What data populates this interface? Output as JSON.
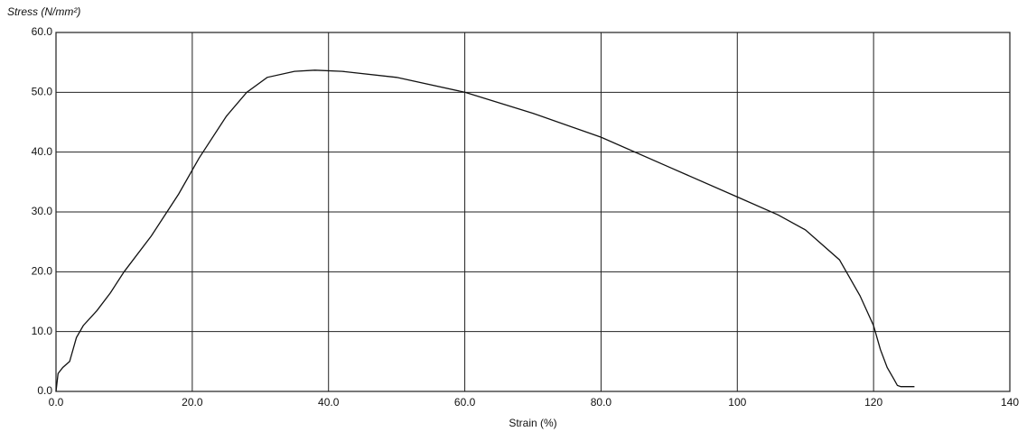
{
  "chart_data": {
    "type": "line",
    "y_label": "Stress (N/mm²)",
    "x_label": "Strain (%)",
    "x": [
      0,
      0.3,
      1,
      2,
      3,
      4,
      6,
      8,
      10,
      14,
      18,
      21,
      25,
      28,
      31,
      35,
      38,
      42,
      50,
      60,
      70,
      80,
      90,
      100,
      106,
      110,
      115,
      118,
      120,
      121,
      122,
      123,
      123.5,
      124,
      126
    ],
    "values": [
      0,
      3,
      4,
      5,
      9,
      11,
      13.5,
      16.5,
      20,
      26,
      33,
      39,
      46,
      50,
      52.5,
      53.5,
      53.7,
      53.5,
      52.5,
      50,
      46.5,
      42.5,
      37.5,
      32.5,
      29.5,
      27,
      22,
      16,
      11,
      7,
      4,
      2,
      1,
      0.8,
      0.8
    ],
    "color": "#111111",
    "xlim": [
      0,
      140
    ],
    "xticks": [
      {
        "value": 0,
        "label": "0.0"
      },
      {
        "value": 20,
        "label": "20.0"
      },
      {
        "value": 40,
        "label": "40.0"
      },
      {
        "value": 60,
        "label": "60.0"
      },
      {
        "value": 80,
        "label": "80.0"
      },
      100,
      120,
      140
    ],
    "ylim": [
      0,
      60
    ],
    "yticks": [
      {
        "value": 0,
        "label": "0.0"
      },
      {
        "value": 10,
        "label": "10.0"
      },
      {
        "value": 20,
        "label": "20.0"
      },
      {
        "value": 30,
        "label": "30.0"
      },
      {
        "value": 40,
        "label": "40.0"
      },
      {
        "value": 50,
        "label": "50.0"
      },
      {
        "value": 60,
        "label": "60.0"
      }
    ],
    "grid": true
  }
}
